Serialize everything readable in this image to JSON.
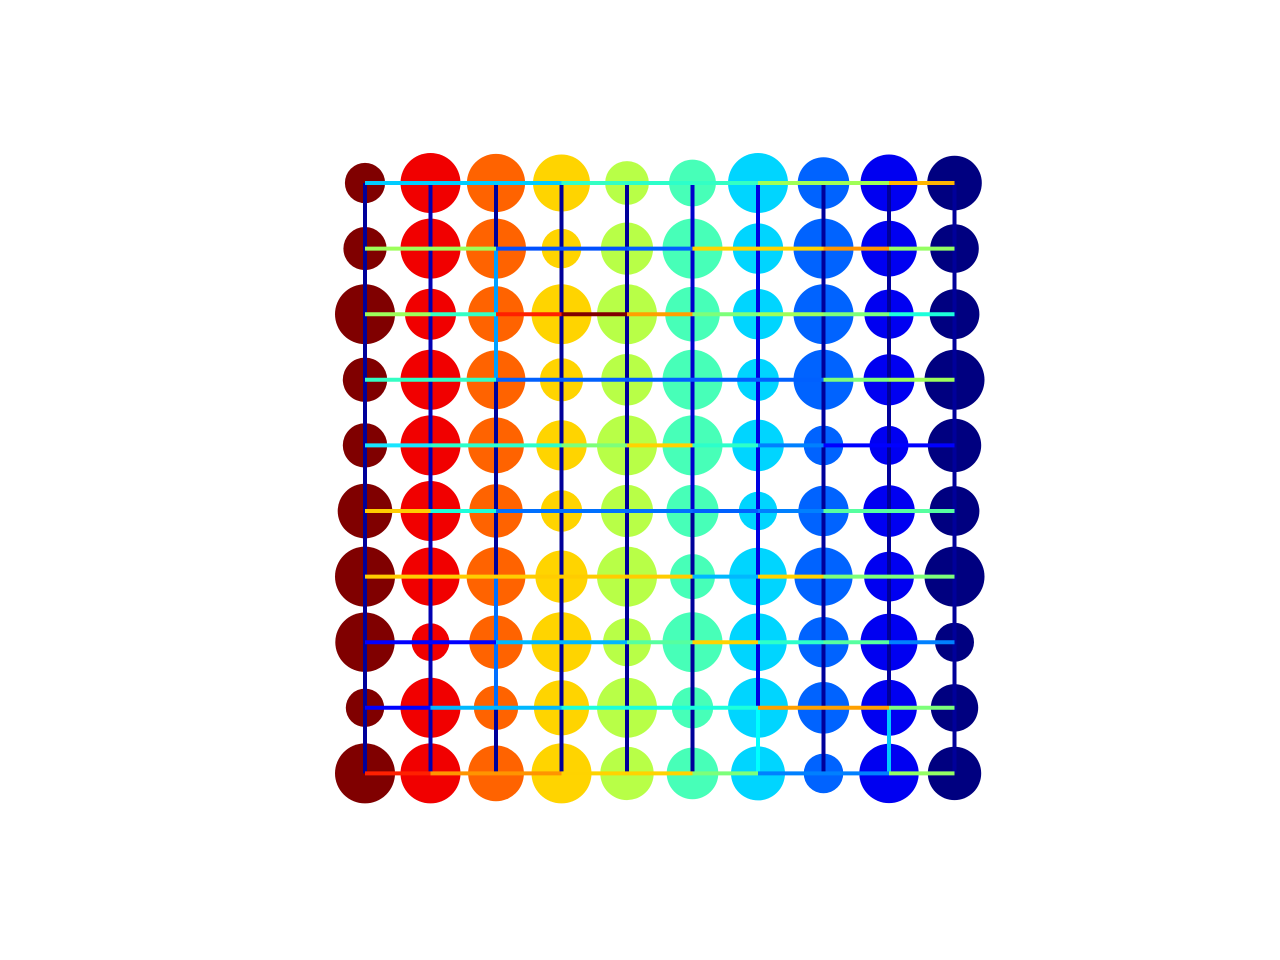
{
  "graph": {
    "type": "grid-graph",
    "rows": 10,
    "cols": 10,
    "colormap": "jet",
    "node_color_by": "column",
    "background": "#ffffff",
    "node_size_range": [
      0.55,
      1.0
    ],
    "node_sizes": [
      [
        0.67,
        1.0,
        0.97,
        0.95,
        0.73,
        0.78,
        1.0,
        0.86,
        0.95,
        0.91
      ],
      [
        0.72,
        1.0,
        1.0,
        0.66,
        0.87,
        1.0,
        0.84,
        1.0,
        0.93,
        0.81
      ],
      [
        1.0,
        0.85,
        0.93,
        1.0,
        1.0,
        0.91,
        0.84,
        1.0,
        0.82,
        0.83
      ],
      [
        0.74,
        1.0,
        0.98,
        0.72,
        0.86,
        1.0,
        0.7,
        1.0,
        0.85,
        1.0
      ],
      [
        0.74,
        1.0,
        0.93,
        0.84,
        1.0,
        1.0,
        0.86,
        0.66,
        0.65,
        0.89
      ],
      [
        0.91,
        1.0,
        0.89,
        0.69,
        0.87,
        0.87,
        0.64,
        0.84,
        0.86,
        0.83
      ],
      [
        1.0,
        0.97,
        0.98,
        0.87,
        1.0,
        0.75,
        0.96,
        0.97,
        0.83,
        1.0
      ],
      [
        0.99,
        0.63,
        0.89,
        1.0,
        0.8,
        1.0,
        0.96,
        0.84,
        0.95,
        0.65
      ],
      [
        0.64,
        1.0,
        0.74,
        0.92,
        1.0,
        0.69,
        1.0,
        0.86,
        0.93,
        0.79
      ],
      [
        1.0,
        1.0,
        0.93,
        1.0,
        0.89,
        0.86,
        0.9,
        0.66,
        0.99,
        0.89
      ]
    ],
    "h_edge_colors": [
      [
        "#00ccff",
        "#00ccff",
        "#00ccff",
        "#33ffc4",
        "#2cffca",
        "#33ffc4",
        "#a0ff56",
        "#a0ff56",
        "#ffb600"
      ],
      [
        "#9dff5a",
        "#9dff5a",
        "#0050ff",
        "#0050ff",
        "#0060ff",
        "#ffd300",
        "#ffd300",
        "#ff9400",
        "#94ff63"
      ],
      [
        "#9dff5a",
        "#33ffc4",
        "#ff2000",
        "#800000",
        "#ffa000",
        "#7dff7a",
        "#9dff5a",
        "#7dff7a",
        "#1cffdb"
      ],
      [
        "#33ffc4",
        "#33ffc4",
        "#0060ff",
        "#0060ff",
        "#0060ff",
        "#0060ff",
        "#0060ff",
        "#7dff7a",
        "#9dff5a"
      ],
      [
        "#17e6ff",
        "#2cffca",
        "#2cffca",
        "#7dff7a",
        "#ffd300",
        "#2cffca",
        "#0080ff",
        "#0000ff",
        "#0000ff"
      ],
      [
        "#ffcc00",
        "#1cffdb",
        "#0070ff",
        "#0070ff",
        "#0070ff",
        "#0060ff",
        "#0080ff",
        "#56ffa0",
        "#56ffa0"
      ],
      [
        "#ffcc00",
        "#ffcc00",
        "#ffcc00",
        "#ffcc00",
        "#ffcc00",
        "#00b8ff",
        "#ffd300",
        "#7dff7a",
        "#7dff7a"
      ],
      [
        "#0000ff",
        "#0000ff",
        "#00b8ff",
        "#00b8ff",
        "#56ffa0",
        "#ffd300",
        "#2cffca",
        "#56ffa0",
        "#0080ff"
      ],
      [
        "#0000ff",
        "#00b8ff",
        "#00b8ff",
        "#1cffdb",
        "#1cffdb",
        "#1cffdb",
        "#ffa000",
        "#ffa000",
        "#7dff7a"
      ],
      [
        "#ff2000",
        "#ff9400",
        "#ff9400",
        "#ffd300",
        "#ffd300",
        "#7dff7a",
        "#0080ff",
        "#0080ff",
        "#94ff63"
      ]
    ],
    "v_edge_colors": [
      [
        "#00009a",
        "#00009a",
        "#00009a",
        "#00009a",
        "#00009a",
        "#00009a",
        "#00009a",
        "#00009a",
        "#00009a"
      ],
      [
        "#0000b2",
        "#0000b2",
        "#0000b2",
        "#0000b2",
        "#0000b2",
        "#0000b2",
        "#0000b2",
        "#0000b2",
        "#0000b2"
      ],
      [
        "#00009a",
        "#00a0ff",
        "#00a0ff",
        "#00009a",
        "#00009a",
        "#00009a",
        "#0070ff",
        "#0070ff",
        "#00009a"
      ],
      [
        "#00009a",
        "#00009a",
        "#00009a",
        "#00009a",
        "#00009a",
        "#00009a",
        "#00009a",
        "#00009a",
        "#00009a"
      ],
      [
        "#00009a",
        "#00009a",
        "#00009a",
        "#00009a",
        "#00009a",
        "#00009a",
        "#00009a",
        "#00009a",
        "#00009a"
      ],
      [
        "#0000cc",
        "#0000cc",
        "#0000cc",
        "#0000cc",
        "#0000cc",
        "#00009a",
        "#00009a",
        "#00009a",
        "#00009a"
      ],
      [
        "#0000e0",
        "#0000e0",
        "#0000e0",
        "#0000e0",
        "#0000e0",
        "#0000e0",
        "#0000e0",
        "#0000e0",
        "#00ffff"
      ],
      [
        "#00009a",
        "#00009a",
        "#00009a",
        "#00009a",
        "#00009a",
        "#00009a",
        "#00009a",
        "#00009a",
        "#00009a"
      ],
      [
        "#00009a",
        "#00009a",
        "#00009a",
        "#00009a",
        "#00009a",
        "#00009a",
        "#00009a",
        "#00009a",
        "#00c8ff"
      ],
      [
        "#00009a",
        "#00009a",
        "#00009a",
        "#00009a",
        "#00009a",
        "#00009a",
        "#00009a",
        "#00009a",
        "#00009a"
      ]
    ]
  }
}
